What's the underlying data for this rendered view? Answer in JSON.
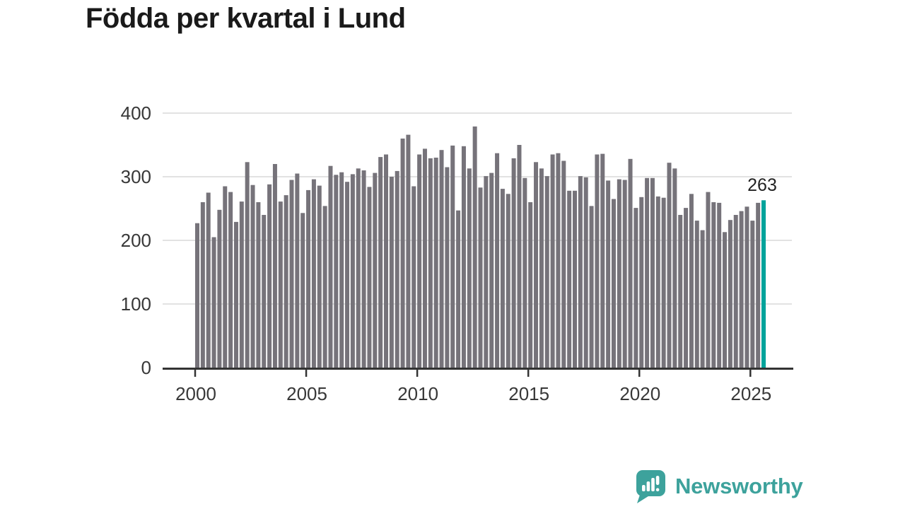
{
  "title": "Födda per kvartal i Lund",
  "branding": {
    "name": "Newsworthy"
  },
  "colors": {
    "bar": "#76737a",
    "highlight": "#00a39b",
    "axis": "#333333",
    "tick_label": "#383838",
    "grid": "#e2e2e2",
    "title": "#1a1a1a",
    "annotation": "#222222",
    "brand": "#3da29c"
  },
  "chart_data": {
    "type": "bar",
    "title": "Födda per kvartal i Lund",
    "x_unit": "quarter",
    "start_quarter": "2000Q1",
    "end_quarter": "2025Q3",
    "values": [
      227,
      260,
      275,
      205,
      248,
      285,
      276,
      229,
      261,
      323,
      287,
      260,
      240,
      288,
      320,
      261,
      271,
      295,
      305,
      243,
      279,
      296,
      286,
      254,
      317,
      303,
      307,
      292,
      304,
      313,
      310,
      284,
      306,
      331,
      335,
      300,
      309,
      360,
      366,
      285,
      335,
      344,
      329,
      330,
      342,
      315,
      349,
      247,
      348,
      313,
      379,
      283,
      301,
      306,
      337,
      281,
      273,
      329,
      350,
      298,
      260,
      323,
      313,
      301,
      335,
      337,
      325,
      278,
      278,
      301,
      299,
      254,
      335,
      336,
      294,
      265,
      296,
      295,
      328,
      251,
      268,
      298,
      298,
      269,
      267,
      322,
      313,
      240,
      251,
      273,
      231,
      216,
      276,
      260,
      259,
      213,
      232,
      240,
      246,
      253,
      231,
      259,
      263
    ],
    "highlight_index": 102,
    "highlight_label": "263",
    "xticks": [
      2000,
      2005,
      2010,
      2015,
      2020,
      2025
    ],
    "yticks": [
      0,
      100,
      200,
      300,
      400
    ],
    "ylim": [
      0,
      400
    ],
    "grid": "horizontal",
    "legend": "none"
  }
}
